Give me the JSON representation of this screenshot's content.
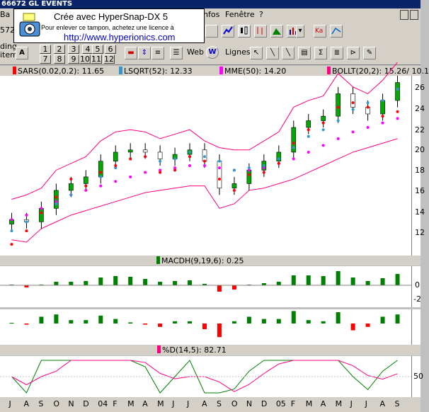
{
  "title": "66672 GL EVENTS",
  "menu": {
    "first": "Ba",
    "infos": "nfos",
    "fenetre": "Fenêtre",
    "help": "?"
  },
  "toolbar": {
    "left_value": "572",
    "web_label": "Web",
    "lignes_label": "Lignes",
    "trading_label": "ding",
    "item_label": "item",
    "a_label": "A",
    "numbers_row1": [
      "1",
      "2",
      "3",
      "4",
      "5",
      "6"
    ],
    "numbers_row2": [
      "7",
      "8",
      "9",
      "10",
      "11",
      "12"
    ]
  },
  "stamp": {
    "line1": "Crée avec HyperSnap-DX 5",
    "line2": "Pour enlever ce tampon, achetez une licence à",
    "line3": "http://www.hyperionics.com"
  },
  "legend": {
    "sars": "SARS(0.02,0.2): 11.65",
    "lsqrt": "LSQRT(52): 12.33",
    "mme": "MME(50): 14.20",
    "bollt": "BOLLT(20,2): 15.26/ 10.1",
    "macd": "MACDH(9,19,6):  0.25",
    "stoch": "%D(14,5): 82.71"
  },
  "colors": {
    "sars": "#ff0000",
    "lsqrt": "#3399cc",
    "mme": "#ff00ff",
    "bollt": "#ff0080",
    "macd": "#008000",
    "stoch": "#ff0080",
    "candle_up": "#00aa00",
    "candle_down": "#000000"
  },
  "y_axis": {
    "main": [
      "26",
      "24",
      "22",
      "20",
      "18",
      "16",
      "14",
      "12"
    ],
    "macd": [
      "0",
      "-2"
    ],
    "stoch": [
      "50"
    ]
  },
  "x_axis": [
    "J",
    "A",
    "S",
    "O",
    "N",
    "D",
    "04",
    "F",
    "M",
    "A",
    "M",
    "J",
    "J",
    "A",
    "S",
    "O",
    "N",
    "D",
    "05",
    "F",
    "M",
    "A",
    "M",
    "J",
    "J",
    "A",
    "S"
  ],
  "chart_data": {
    "type": "line",
    "title": "",
    "xlabel": "",
    "ylabel": "",
    "ylim": [
      11,
      27
    ],
    "categories": [
      "J",
      "A",
      "S",
      "O",
      "N",
      "D",
      "04",
      "F",
      "M",
      "A",
      "M",
      "J",
      "J",
      "A",
      "S",
      "O",
      "N",
      "D",
      "05",
      "F",
      "M",
      "A",
      "M",
      "J",
      "J",
      "A",
      "S"
    ],
    "series": [
      {
        "name": "SARS(0.02,0.2)",
        "values": [
          12.0,
          13.2,
          14.8,
          16.2,
          17.8,
          17.2,
          18.4,
          19.0,
          19.6,
          19.8,
          18.4,
          18.6,
          19.8,
          19.4,
          17.8,
          16.8,
          18.2,
          18.4,
          19.2,
          21.0,
          22.2,
          22.8,
          24.2,
          24.6,
          24.2,
          23.4,
          23.8
        ]
      },
      {
        "name": "LSQRT(52)",
        "values": [
          13.2,
          14.0,
          14.8,
          15.6,
          16.4,
          17.2,
          18.0,
          18.8,
          19.6,
          19.8,
          19.4,
          19.6,
          20.2,
          19.8,
          19.4,
          18.6,
          18.8,
          19.0,
          19.6,
          20.6,
          21.6,
          22.2,
          23.0,
          24.0,
          24.6,
          24.8,
          25.8
        ]
      },
      {
        "name": "MME(50)",
        "values": [
          14.2,
          14.6,
          15.2,
          15.8,
          16.4,
          16.8,
          17.2,
          17.6,
          18.0,
          18.4,
          18.6,
          18.8,
          19.0,
          19.0,
          18.8,
          18.6,
          18.6,
          18.8,
          19.2,
          19.6,
          20.2,
          20.8,
          21.4,
          22.0,
          22.4,
          22.8,
          23.2
        ]
      },
      {
        "name": "Close",
        "values": [
          14.2,
          14.0,
          15.2,
          16.8,
          17.4,
          18.0,
          19.4,
          20.2,
          20.4,
          20.2,
          19.6,
          20.0,
          20.4,
          19.4,
          17.0,
          17.4,
          18.6,
          19.4,
          20.2,
          22.4,
          23.0,
          23.4,
          25.4,
          24.2,
          23.6,
          24.8,
          26.4
        ]
      }
    ]
  }
}
